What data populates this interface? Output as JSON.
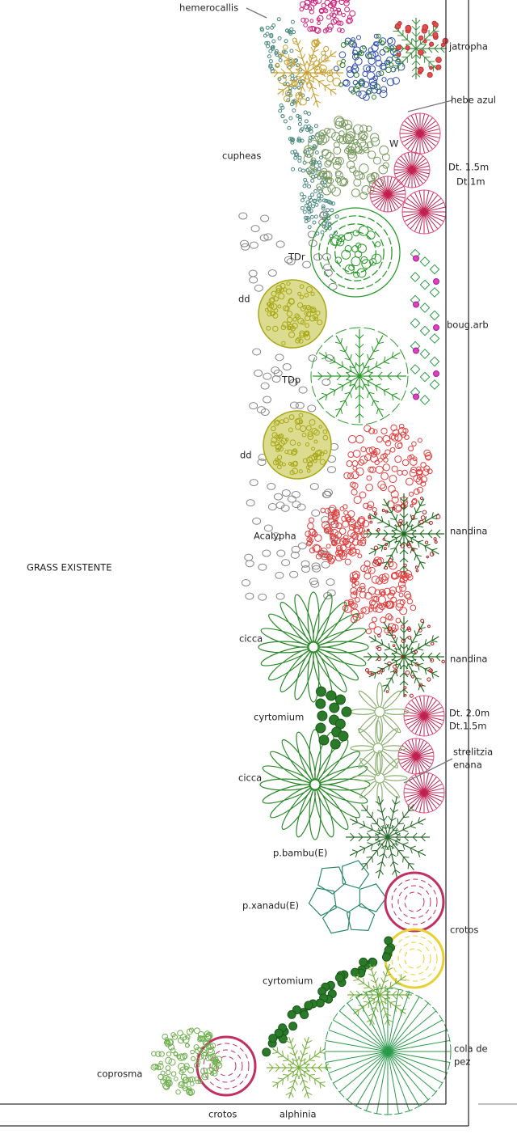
{
  "plan": {
    "labels": [
      "hemerocallis",
      "jatropha",
      "hebe azul",
      "W",
      "cupheas",
      "Dt. 1.5m",
      "Dt.1m",
      "TDr",
      "dd",
      "boug.arb",
      "TDp",
      "dd",
      "nandina",
      "Acalypha",
      "GRASS EXISTENTE",
      "cicca",
      "nandina",
      "cyrtomium",
      "Dt. 2.0m",
      "Dt.1.5m",
      "strelitzia",
      "enana",
      "cicca",
      "p.bambu(E)",
      "p.xanadu(E)",
      "crotos",
      "cyrtomium",
      "cola de",
      "pez",
      "coprosma",
      "crotos",
      "alphinia"
    ]
  }
}
